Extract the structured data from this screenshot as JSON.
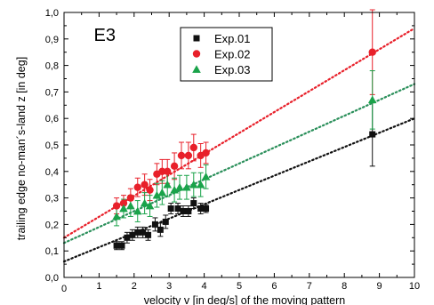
{
  "chart_data": {
    "type": "scatter",
    "panel_label": "E3",
    "xlabel": "velocity v [in deg/s] of the moving pattern",
    "ylabel": "trailing edge no-man´s-land z [in deg]",
    "xlim": [
      0,
      10
    ],
    "ylim": [
      0,
      1.0
    ],
    "x_ticks": [
      "0",
      "1",
      "2",
      "3",
      "4",
      "5",
      "6",
      "7",
      "8",
      "9",
      "10"
    ],
    "y_ticks": [
      "0,0",
      "0,1",
      "0,2",
      "0,3",
      "0,4",
      "0,5",
      "0,6",
      "0,7",
      "0,8",
      "0,9",
      "1,0"
    ],
    "legend_position": "top-center",
    "grid": false,
    "series": [
      {
        "name": "Exp.01",
        "marker": "square",
        "color": "#111111",
        "fit_color": "#111111",
        "fit": {
          "x": [
            0,
            10
          ],
          "y": [
            0.06,
            0.6
          ]
        },
        "points": [
          {
            "x": 1.5,
            "y": 0.12,
            "err": 0.015
          },
          {
            "x": 1.65,
            "y": 0.12,
            "err": 0.015
          },
          {
            "x": 1.8,
            "y": 0.15,
            "err": 0.02
          },
          {
            "x": 1.95,
            "y": 0.16,
            "err": 0.02
          },
          {
            "x": 2.1,
            "y": 0.17,
            "err": 0.02
          },
          {
            "x": 2.25,
            "y": 0.17,
            "err": 0.02
          },
          {
            "x": 2.4,
            "y": 0.16,
            "err": 0.02
          },
          {
            "x": 2.6,
            "y": 0.2,
            "err": 0.025
          },
          {
            "x": 2.75,
            "y": 0.18,
            "err": 0.025
          },
          {
            "x": 2.9,
            "y": 0.21,
            "err": 0.025
          },
          {
            "x": 3.05,
            "y": 0.26,
            "err": 0.02
          },
          {
            "x": 3.25,
            "y": 0.26,
            "err": 0.02
          },
          {
            "x": 3.4,
            "y": 0.25,
            "err": 0.02
          },
          {
            "x": 3.55,
            "y": 0.25,
            "err": 0.02
          },
          {
            "x": 3.7,
            "y": 0.28,
            "err": 0.02
          },
          {
            "x": 3.9,
            "y": 0.26,
            "err": 0.02
          },
          {
            "x": 4.05,
            "y": 0.26,
            "err": 0.015
          },
          {
            "x": 8.8,
            "y": 0.54,
            "err": 0.12
          }
        ]
      },
      {
        "name": "Exp.02",
        "marker": "circle",
        "color": "#e8202a",
        "fit_color": "#e8202a",
        "fit": {
          "x": [
            0,
            10
          ],
          "y": [
            0.15,
            0.94
          ]
        },
        "points": [
          {
            "x": 1.5,
            "y": 0.27,
            "err": 0.03
          },
          {
            "x": 1.7,
            "y": 0.28,
            "err": 0.03
          },
          {
            "x": 1.9,
            "y": 0.3,
            "err": 0.035
          },
          {
            "x": 2.1,
            "y": 0.34,
            "err": 0.035
          },
          {
            "x": 2.3,
            "y": 0.35,
            "err": 0.04
          },
          {
            "x": 2.45,
            "y": 0.33,
            "err": 0.04
          },
          {
            "x": 2.65,
            "y": 0.39,
            "err": 0.04
          },
          {
            "x": 2.8,
            "y": 0.4,
            "err": 0.045
          },
          {
            "x": 2.95,
            "y": 0.4,
            "err": 0.045
          },
          {
            "x": 3.15,
            "y": 0.42,
            "err": 0.05
          },
          {
            "x": 3.35,
            "y": 0.46,
            "err": 0.05
          },
          {
            "x": 3.55,
            "y": 0.46,
            "err": 0.05
          },
          {
            "x": 3.7,
            "y": 0.49,
            "err": 0.05
          },
          {
            "x": 3.9,
            "y": 0.46,
            "err": 0.045
          },
          {
            "x": 4.05,
            "y": 0.47,
            "err": 0.04
          },
          {
            "x": 8.8,
            "y": 0.85,
            "err": 0.16
          }
        ]
      },
      {
        "name": "Exp.03",
        "marker": "triangle",
        "color": "#1aa34a",
        "fit_color": "#2a8f5a",
        "fit": {
          "x": [
            0,
            10
          ],
          "y": [
            0.13,
            0.73
          ]
        },
        "points": [
          {
            "x": 1.5,
            "y": 0.23,
            "err": 0.035
          },
          {
            "x": 1.7,
            "y": 0.26,
            "err": 0.035
          },
          {
            "x": 1.9,
            "y": 0.27,
            "err": 0.04
          },
          {
            "x": 2.1,
            "y": 0.25,
            "err": 0.04
          },
          {
            "x": 2.3,
            "y": 0.28,
            "err": 0.04
          },
          {
            "x": 2.45,
            "y": 0.27,
            "err": 0.04
          },
          {
            "x": 2.65,
            "y": 0.31,
            "err": 0.045
          },
          {
            "x": 2.8,
            "y": 0.32,
            "err": 0.045
          },
          {
            "x": 2.95,
            "y": 0.35,
            "err": 0.045
          },
          {
            "x": 3.15,
            "y": 0.33,
            "err": 0.045
          },
          {
            "x": 3.3,
            "y": 0.34,
            "err": 0.045
          },
          {
            "x": 3.5,
            "y": 0.34,
            "err": 0.045
          },
          {
            "x": 3.7,
            "y": 0.35,
            "err": 0.045
          },
          {
            "x": 3.9,
            "y": 0.35,
            "err": 0.045
          },
          {
            "x": 4.05,
            "y": 0.38,
            "err": 0.045
          },
          {
            "x": 8.8,
            "y": 0.67,
            "err": 0.11
          }
        ]
      }
    ]
  }
}
